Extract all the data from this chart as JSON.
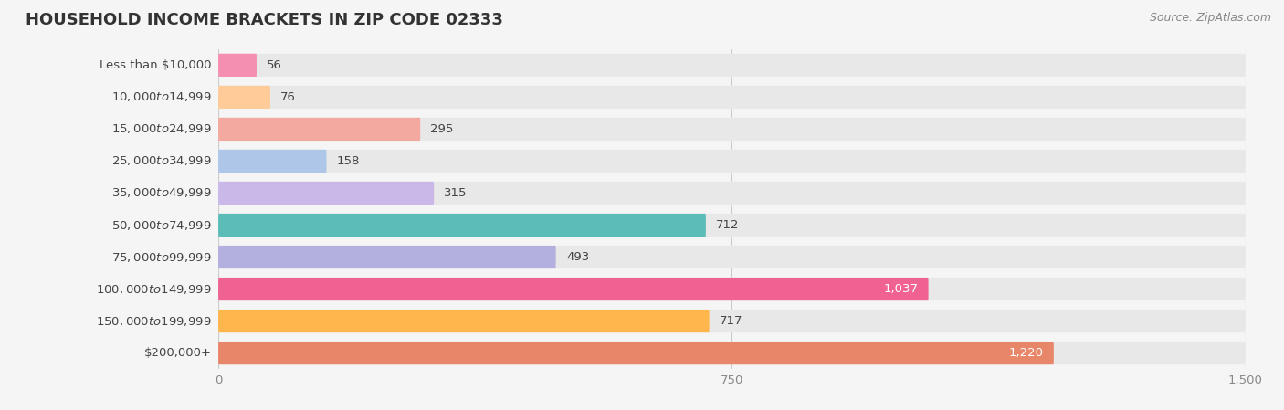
{
  "title": "HOUSEHOLD INCOME BRACKETS IN ZIP CODE 02333",
  "source": "Source: ZipAtlas.com",
  "categories": [
    "Less than $10,000",
    "$10,000 to $14,999",
    "$15,000 to $24,999",
    "$25,000 to $34,999",
    "$35,000 to $49,999",
    "$50,000 to $74,999",
    "$75,000 to $99,999",
    "$100,000 to $149,999",
    "$150,000 to $199,999",
    "$200,000+"
  ],
  "values": [
    56,
    76,
    295,
    158,
    315,
    712,
    493,
    1037,
    717,
    1220
  ],
  "bar_colors": [
    "#f48fb1",
    "#ffcc99",
    "#f4a9a0",
    "#aec6e8",
    "#c9b8e8",
    "#5bbcb8",
    "#b3b0e0",
    "#f06292",
    "#ffb74d",
    "#e8866a"
  ],
  "xlim": [
    0,
    1500
  ],
  "xticks": [
    0,
    750,
    1500
  ],
  "background_color": "#f5f5f5",
  "bar_background_color": "#e8e8e8",
  "title_fontsize": 13,
  "source_fontsize": 9,
  "label_fontsize": 9.5,
  "value_fontsize": 9.5,
  "bar_height": 0.72,
  "figsize": [
    14.06,
    4.49
  ],
  "dpi": 100
}
